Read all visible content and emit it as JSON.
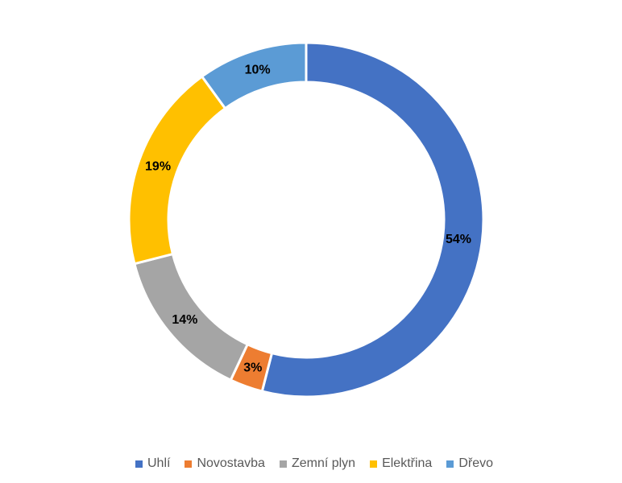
{
  "chart_data": {
    "type": "pie",
    "subtype": "donut",
    "title": "",
    "categories": [
      "Uhlí",
      "Novostavba",
      "Zemní plyn",
      "Elektřina",
      "Dřevo"
    ],
    "values": [
      54,
      3,
      14,
      19,
      10
    ],
    "labels": [
      "54%",
      "3%",
      "14%",
      "19%",
      "10%"
    ],
    "colors": [
      "#4472C4",
      "#ED7D31",
      "#A5A5A5",
      "#FFC000",
      "#5B9BD5"
    ],
    "legend_position": "bottom"
  }
}
